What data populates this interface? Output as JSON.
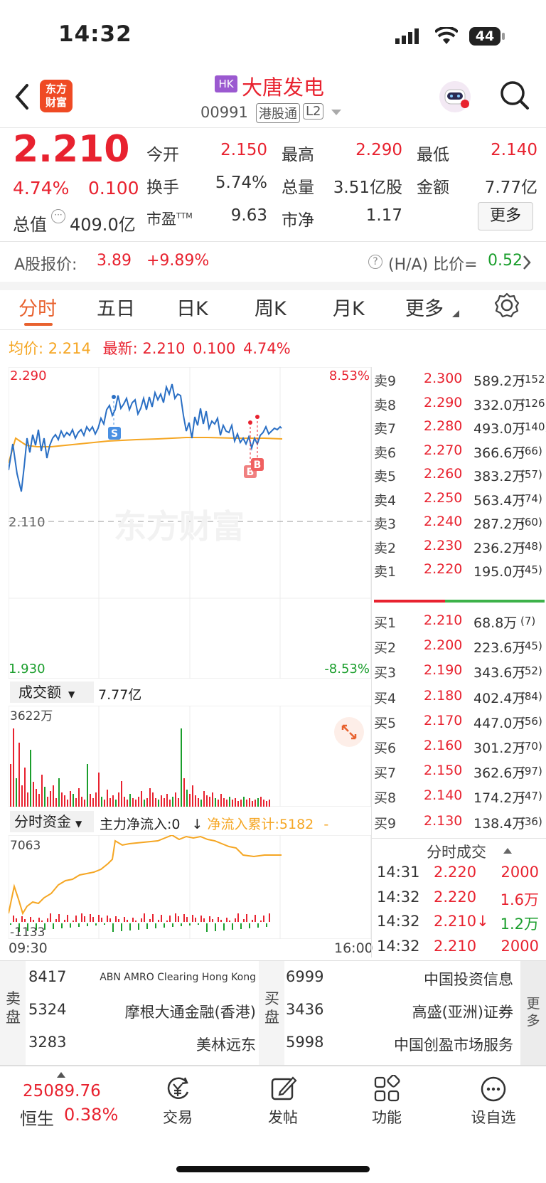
{
  "status": {
    "time": "14:32",
    "battery": "44"
  },
  "header": {
    "app_logo": "东方\n财富",
    "market_badge": "HK",
    "stock_name": "大唐发电",
    "stock_code": "00991",
    "tag1": "港股通",
    "tag2": "L2"
  },
  "quote": {
    "price": "2.210",
    "change_pct": "4.74%",
    "change": "0.100",
    "labels": {
      "open": "今开",
      "high": "最高",
      "low": "最低",
      "turnover": "换手",
      "volume": "总量",
      "amount": "金额",
      "mktcap": "总值",
      "pe": "市盈",
      "pe_sup": "TTM",
      "pb": "市净"
    },
    "open": "2.150",
    "high": "2.290",
    "low": "2.140",
    "turnover": "5.74%",
    "volume": "3.51亿股",
    "amount": "7.77亿",
    "mktcap": "409.0亿",
    "pe": "9.63",
    "pb": "1.17",
    "more": "更多"
  },
  "a_share": {
    "label": "A股报价:",
    "price": "3.89",
    "pct": "+9.89%",
    "ratio_label": "(H/A) 比价=",
    "ratio": "0.52"
  },
  "tabs": [
    "分时",
    "五日",
    "日K",
    "周K",
    "月K",
    "更多"
  ],
  "chart_header": {
    "avg_label": "均价:",
    "avg": "2.214",
    "latest_label": "最新:",
    "latest": "2.210",
    "chg": "0.100",
    "pct": "4.74%"
  },
  "chart_data": {
    "type": "line",
    "x_start": "09:30",
    "x_end": "16:00",
    "y_max": "2.290",
    "y_min": "1.930",
    "y_ref": "2.110",
    "pct_max": "8.53%",
    "pct_min": "-8.53%",
    "markers": [
      "S",
      "B",
      "B"
    ],
    "watermark": "东方财富"
  },
  "volume": {
    "selector": "成交额",
    "value": "7.77亿",
    "max_label": "3622万"
  },
  "fund": {
    "selector": "分时资金",
    "net_in": "主力净流入:0",
    "cum": "净流入累计:5182",
    "dash": "-",
    "max": "7063",
    "min": "-1133"
  },
  "orderbook": {
    "asks": [
      [
        "卖9",
        "2.300",
        "589.2万",
        "(152)"
      ],
      [
        "卖8",
        "2.290",
        "332.0万",
        "(126)"
      ],
      [
        "卖7",
        "2.280",
        "493.0万",
        "(140)"
      ],
      [
        "卖6",
        "2.270",
        "366.6万",
        "(66)"
      ],
      [
        "卖5",
        "2.260",
        "383.2万",
        "(57)"
      ],
      [
        "卖4",
        "2.250",
        "563.4万",
        "(74)"
      ],
      [
        "卖3",
        "2.240",
        "287.2万",
        "(60)"
      ],
      [
        "卖2",
        "2.230",
        "236.2万",
        "(48)"
      ],
      [
        "卖1",
        "2.220",
        "195.0万",
        "(45)"
      ]
    ],
    "bids": [
      [
        "买1",
        "2.210",
        "68.8万",
        "(7)"
      ],
      [
        "买2",
        "2.200",
        "223.6万",
        "(45)"
      ],
      [
        "买3",
        "2.190",
        "343.6万",
        "(52)"
      ],
      [
        "买4",
        "2.180",
        "402.4万",
        "(84)"
      ],
      [
        "买5",
        "2.170",
        "447.0万",
        "(56)"
      ],
      [
        "买6",
        "2.160",
        "301.2万",
        "(70)"
      ],
      [
        "买7",
        "2.150",
        "362.6万",
        "(97)"
      ],
      [
        "买8",
        "2.140",
        "174.2万",
        "(47)"
      ],
      [
        "买9",
        "2.130",
        "138.4万",
        "(36)"
      ]
    ]
  },
  "trades": {
    "title": "分时成交",
    "rows": [
      [
        "14:31",
        "2.220",
        "2000"
      ],
      [
        "14:32",
        "2.220",
        "1.6万"
      ],
      [
        "14:32",
        "2.210↓",
        "1.2万"
      ],
      [
        "14:32",
        "2.210",
        "2000"
      ]
    ]
  },
  "brokers": {
    "sell_label": "卖盘",
    "buy_label": "买盘",
    "more": "更多",
    "sell": [
      [
        "8417",
        "ABN AMRO Clearing Hong Kong"
      ],
      [
        "5324",
        "摩根大通金融(香港)"
      ],
      [
        "3283",
        "美林远东"
      ]
    ],
    "buy": [
      [
        "6999",
        "中国投资信息"
      ],
      [
        "3436",
        "高盛(亚洲)证券"
      ],
      [
        "5998",
        "中国创盈市场服务"
      ]
    ]
  },
  "bottom": {
    "index_value": "25089.76",
    "index_name": "恒生",
    "index_pct": "0.38%",
    "items": [
      "交易",
      "发帖",
      "功能",
      "设自选"
    ]
  }
}
